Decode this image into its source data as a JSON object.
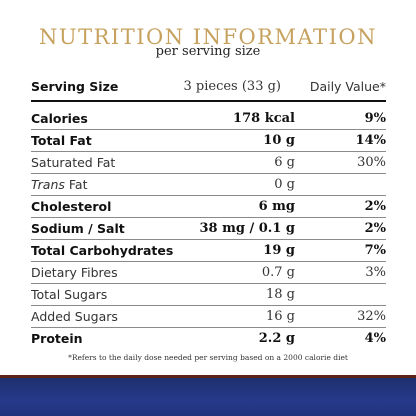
{
  "header": {
    "title": "NUTRITION INFORMATION",
    "subtitle": "per serving size"
  },
  "serving": {
    "label": "Serving Size",
    "amount": "3 pieces (33 g)",
    "daily_value_label": "Daily Value*"
  },
  "rows": [
    {
      "name": "Calories",
      "amount": "178 kcal",
      "dv": "9%",
      "bold": true
    },
    {
      "name": "Total Fat",
      "amount": "10 g",
      "dv": "14%",
      "bold": true
    },
    {
      "name": "Saturated Fat",
      "amount": "6 g",
      "dv": "30%",
      "bold": false
    },
    {
      "name_italic": "Trans",
      "name_rest": " Fat",
      "amount": "0 g",
      "dv": "",
      "bold": false
    },
    {
      "name": "Cholesterol",
      "amount": "6 mg",
      "dv": "2%",
      "bold": true
    },
    {
      "name": "Sodium / Salt",
      "amount": "38 mg / 0.1 g",
      "dv": "2%",
      "bold": true
    },
    {
      "name": "Total Carbohydrates",
      "amount": "19 g",
      "dv": "7%",
      "bold": true
    },
    {
      "name": "Dietary Fibres",
      "amount": "0.7 g",
      "dv": "3%",
      "bold": false
    },
    {
      "name": "Total Sugars",
      "amount": "18 g",
      "dv": "",
      "bold": false
    },
    {
      "name": "Added Sugars",
      "amount": "16 g",
      "dv": "32%",
      "bold": false
    },
    {
      "name": "Protein",
      "amount": "2.2 g",
      "dv": "4%",
      "bold": true
    }
  ],
  "footnote": "*Refers to the daily dose needed per serving based on a 2000 calorie diet",
  "colors": {
    "title": "#c7a25e",
    "band": "#26398a",
    "band_accent": "#5a2418"
  }
}
